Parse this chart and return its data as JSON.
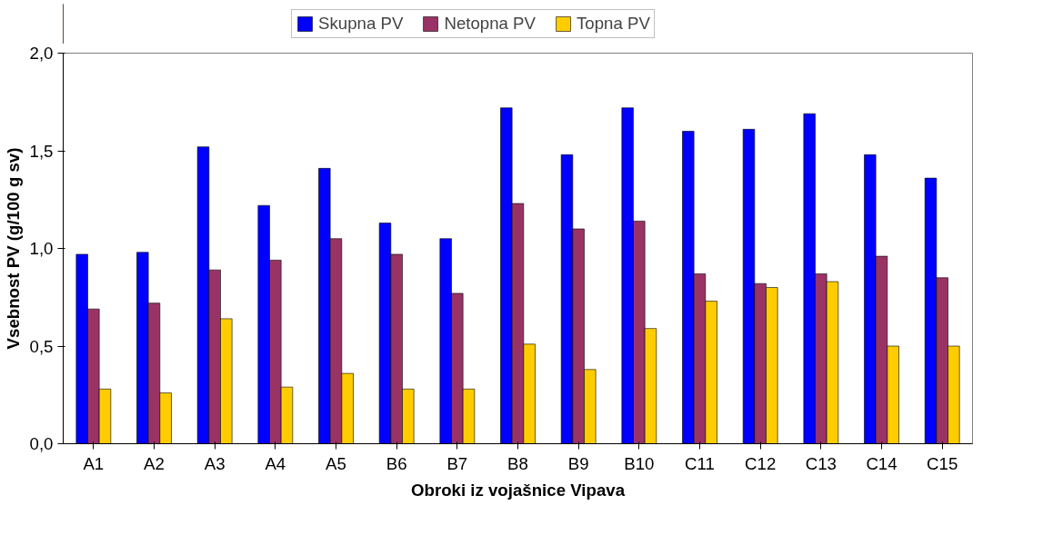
{
  "chart_data": {
    "type": "bar",
    "xlabel": "Obroki iz vojašnice Vipava",
    "ylabel": "Vsebnost PV (g/100 g sv)",
    "categories": [
      "A1",
      "A2",
      "A3",
      "A4",
      "A5",
      "B6",
      "B7",
      "B8",
      "B9",
      "B10",
      "C11",
      "C12",
      "C13",
      "C14",
      "C15"
    ],
    "series": [
      {
        "name": "Skupna PV",
        "color": "#0000ff",
        "values": [
          0.97,
          0.98,
          1.52,
          1.22,
          1.41,
          1.13,
          1.05,
          1.72,
          1.48,
          1.72,
          1.6,
          1.61,
          1.69,
          1.48,
          1.36
        ]
      },
      {
        "name": "Netopna PV",
        "color": "#993366",
        "values": [
          0.69,
          0.72,
          0.89,
          0.94,
          1.05,
          0.97,
          0.77,
          1.23,
          1.1,
          1.14,
          0.87,
          0.82,
          0.87,
          0.96,
          0.85
        ]
      },
      {
        "name": "Topna PV",
        "color": "#ffcc00",
        "values": [
          0.28,
          0.26,
          0.64,
          0.29,
          0.36,
          0.28,
          0.28,
          0.51,
          0.38,
          0.59,
          0.73,
          0.8,
          0.83,
          0.5,
          0.5
        ]
      }
    ],
    "ylim": [
      0,
      2
    ],
    "yticks": [
      {
        "value": 0,
        "label": "0,0"
      },
      {
        "value": 0.5,
        "label": "0,5"
      },
      {
        "value": 1,
        "label": "1,0"
      },
      {
        "value": 1.5,
        "label": "1,5"
      },
      {
        "value": 2,
        "label": "2,0"
      }
    ],
    "legend": "top",
    "grid": false
  }
}
